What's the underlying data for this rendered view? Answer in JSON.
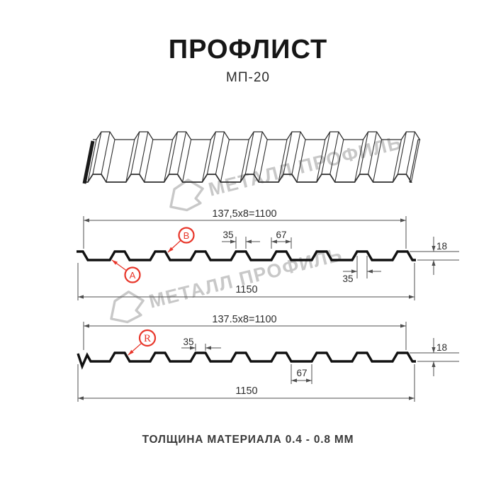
{
  "header": {
    "title": "ПРОФЛИСТ",
    "subtitle": "МП-20"
  },
  "watermark": {
    "text": "МЕТАЛЛ ПРОФИЛЬ"
  },
  "profile1": {
    "dim_top": "137,5x8=1100",
    "dim_rib_top": "35",
    "dim_rib_base": "67",
    "dim_height": "18",
    "dim_rib_top_2": "35",
    "dim_total": "1150",
    "label_a": "A",
    "label_b": "B"
  },
  "profile2": {
    "dim_top": "137.5x8=1100",
    "dim_rib_top": "35",
    "dim_pan": "67",
    "dim_height": "18",
    "dim_total": "1150",
    "label_r": "R"
  },
  "footer": {
    "text": "ТОЛЩИНА МАТЕРИАЛА 0.4 - 0.8 ММ"
  },
  "colors": {
    "accent_red": "#e8362a",
    "ink": "#2d2d2d",
    "dim_line": "#4f4f4f",
    "profile_stroke": "#111111",
    "sheet_stroke": "#2e2e2e",
    "watermark": "#c8c8c8"
  }
}
